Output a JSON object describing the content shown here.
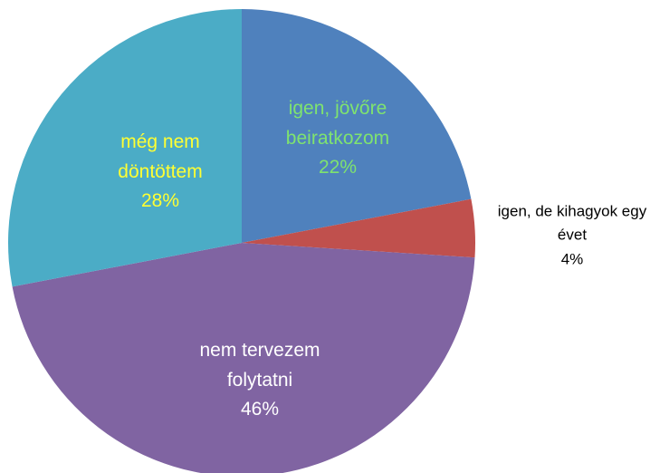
{
  "chart_data": {
    "type": "pie",
    "categories": [
      "igen, jövőre beiratkozom",
      "igen, de kihagyok egy évet",
      "nem tervezem folytatni",
      "még nem döntöttem"
    ],
    "values": [
      22,
      4,
      46,
      28
    ],
    "value_labels": [
      "22%",
      "4%",
      "46%",
      "28%"
    ],
    "colors": [
      "#4f81bd",
      "#c0504d",
      "#8064a2",
      "#4bacc6"
    ],
    "label_colors": [
      "#7fe36f",
      "#000000",
      "#ffffff",
      "#ffff33"
    ],
    "start_angle": 0,
    "direction": "clockwise"
  }
}
